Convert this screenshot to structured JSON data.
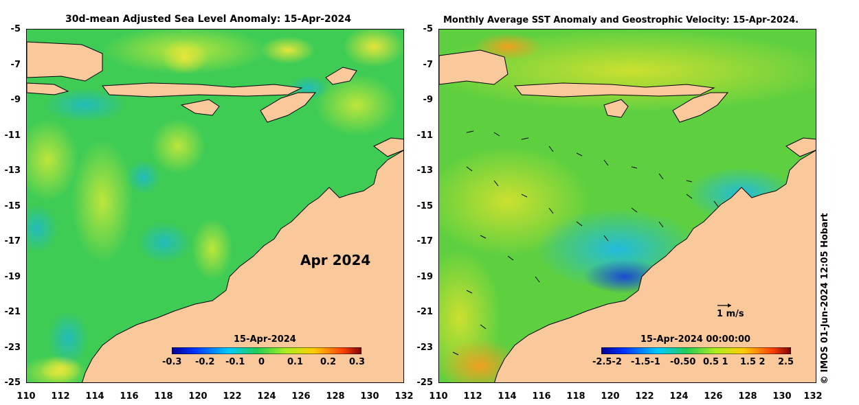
{
  "left_panel": {
    "title": "30d-mean Adjusted Sea Level Anomaly: 15-Apr-2024",
    "month_label": "Apr 2024",
    "colorbar": {
      "date": "15-Apr-2024",
      "ticks": [
        "-0.3",
        "-0.2",
        "-0.1",
        "0",
        "0.1",
        "0.2",
        "0.3"
      ]
    }
  },
  "right_panel": {
    "title": "Monthly Average SST Anomaly  and Geostrophic Velocity: 15-Apr-2024.",
    "scale_label": "1 m/s",
    "colorbar": {
      "date": "15-Apr-2024 00:00:00",
      "ticks": [
        "-2.5-2",
        "-1.5-1",
        "-0.50",
        "0.5 1",
        "1.5 2",
        "2.5"
      ]
    }
  },
  "axes": {
    "y_ticks": [
      "-5",
      "-7",
      "-9",
      "-11",
      "-13",
      "-15",
      "-17",
      "-19",
      "-21",
      "-23",
      "-25"
    ],
    "x_ticks": [
      "110",
      "112",
      "114",
      "116",
      "118",
      "120",
      "122",
      "124",
      "126",
      "128",
      "130",
      "132"
    ]
  },
  "credit": "© IMOS 01-Jun-2024 12:05 Hobart",
  "colors": {
    "land": "#f9c89b",
    "ocean_green": "#33cc55",
    "ocean_yellowgreen": "#aae03a",
    "ocean_yellow": "#e6e63a",
    "ocean_cyan": "#22bbbb",
    "ocean_blue": "#1e74d8"
  }
}
